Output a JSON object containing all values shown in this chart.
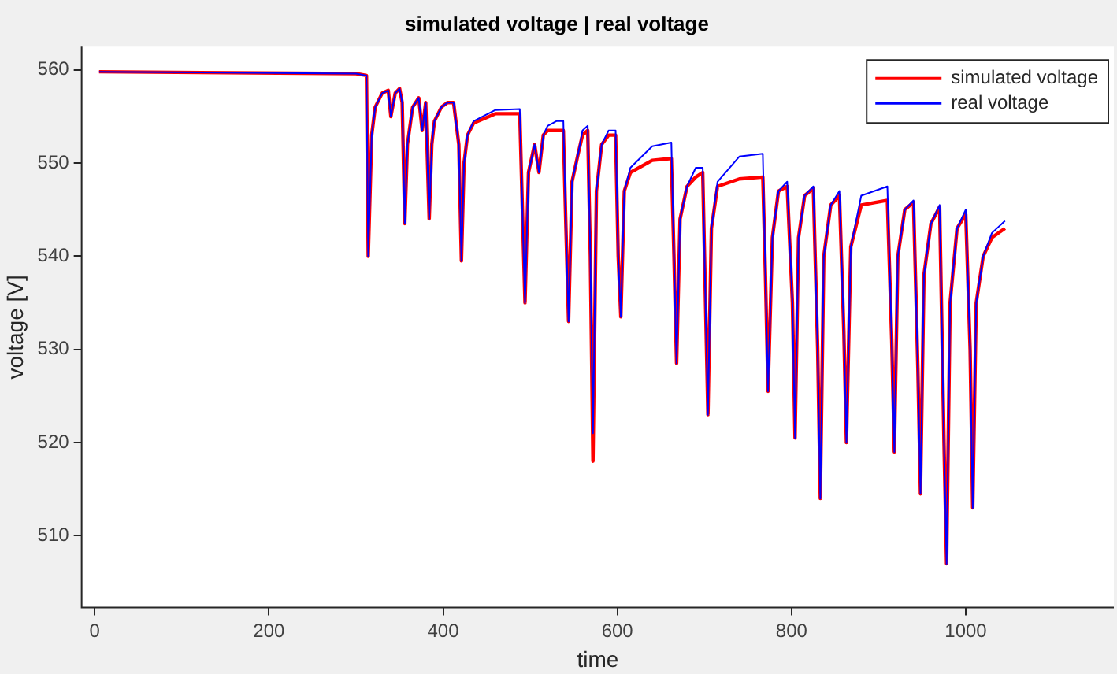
{
  "chart_data": {
    "type": "line",
    "title": "simulated voltage | real voltage",
    "xlabel": "time",
    "ylabel": "voltage [V]",
    "x": [
      5,
      300,
      312,
      314,
      318,
      322,
      330,
      337,
      340,
      345,
      350,
      353,
      356,
      359,
      365,
      372,
      376,
      380,
      384,
      387,
      390,
      398,
      405,
      412,
      418,
      421,
      424,
      428,
      435,
      460,
      488,
      491,
      494,
      498,
      505,
      510,
      515,
      520,
      530,
      538,
      541,
      544,
      548,
      555,
      560,
      566,
      569,
      572,
      576,
      582,
      590,
      598,
      601,
      604,
      608,
      615,
      640,
      662,
      665,
      668,
      672,
      680,
      690,
      698,
      701,
      704,
      708,
      715,
      740,
      767,
      770,
      773,
      778,
      785,
      795,
      801,
      804,
      808,
      815,
      825,
      830,
      833,
      837,
      845,
      855,
      860,
      863,
      868,
      880,
      910,
      915,
      918,
      922,
      930,
      940,
      945,
      948,
      952,
      960,
      970,
      975,
      978,
      982,
      990,
      1000,
      1005,
      1008,
      1012,
      1020,
      1030,
      1045
    ],
    "series": [
      {
        "name": "simulated voltage",
        "color": "#ff0000",
        "values": [
          559.8,
          559.6,
          559.4,
          540,
          553,
          556,
          557.5,
          557.8,
          555,
          557.5,
          558,
          556.5,
          543.5,
          552,
          556,
          557,
          553.5,
          556.5,
          544,
          552,
          554.5,
          556,
          556.5,
          556.5,
          552,
          539.5,
          550,
          553,
          554.3,
          555.3,
          555.3,
          545,
          535,
          549,
          552,
          549,
          553,
          553.5,
          553.5,
          553.5,
          543,
          533,
          548,
          551,
          553,
          553.5,
          540,
          518,
          547,
          552,
          553,
          553,
          540,
          533.5,
          547,
          549,
          550.3,
          550.5,
          540,
          528.5,
          544,
          547.5,
          548.5,
          549,
          536,
          523,
          543,
          547.5,
          548.3,
          548.5,
          538,
          525.5,
          542,
          547,
          547.5,
          535,
          520.5,
          542,
          546.5,
          547.3,
          530,
          514,
          540,
          545.5,
          546.5,
          532,
          520,
          541,
          545.5,
          546,
          531,
          519,
          540,
          545,
          545.8,
          528,
          514.5,
          538,
          543.5,
          545.3,
          520,
          507,
          535,
          543,
          544.5,
          530,
          513,
          535,
          540,
          542,
          543
        ]
      },
      {
        "name": "real voltage",
        "color": "#0000ff",
        "values": [
          559.8,
          559.6,
          559.4,
          540,
          553,
          556,
          557.5,
          557.8,
          555,
          557.5,
          558,
          556.5,
          543.5,
          552,
          556,
          557,
          553.5,
          556.5,
          544,
          552,
          554.5,
          556,
          556.5,
          556.5,
          552,
          539.5,
          550,
          553,
          554.5,
          555.7,
          555.8,
          545,
          535,
          549,
          552,
          549,
          553,
          554,
          554.5,
          554.5,
          543,
          533,
          548,
          551,
          553.5,
          554,
          540,
          521,
          547,
          552,
          553.5,
          553.5,
          540,
          533.5,
          547,
          549.5,
          551.8,
          552.2,
          540,
          528.5,
          544,
          547.5,
          549.5,
          549.5,
          536,
          523,
          543,
          548,
          550.7,
          551,
          538,
          525.5,
          542,
          547,
          548,
          535,
          520.5,
          542,
          546.5,
          547.5,
          530,
          514,
          540,
          545.5,
          547,
          532,
          520,
          541,
          546.5,
          547.5,
          531,
          519,
          540,
          545,
          546,
          528,
          514.5,
          538,
          543.5,
          545.5,
          520,
          507,
          535,
          543,
          545,
          530,
          513,
          535,
          540,
          542.5,
          543.8
        ]
      }
    ],
    "xlim": [
      -15,
      1170
    ],
    "xticks": [
      0,
      200,
      400,
      600,
      800,
      1000
    ],
    "ylim": [
      502.3,
      562.5
    ],
    "yticks": [
      510,
      520,
      530,
      540,
      550,
      560
    ],
    "grid": false,
    "legend": "top right",
    "marker": "none",
    "line_style": "solid"
  }
}
